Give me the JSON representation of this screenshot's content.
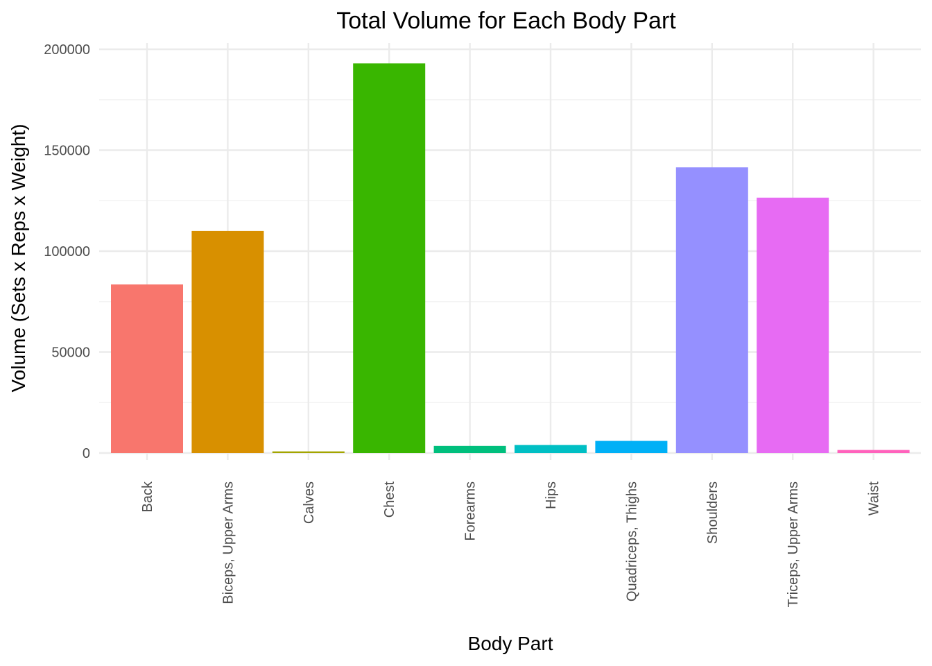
{
  "chart_data": {
    "type": "bar",
    "title": "Total Volume for Each Body Part",
    "xlabel": "Body Part",
    "ylabel": "Volume (Sets x Reps x Weight)",
    "categories": [
      "Back",
      "Biceps, Upper Arms",
      "Calves",
      "Chest",
      "Forearms",
      "Hips",
      "Quadriceps, Thighs",
      "Shoulders",
      "Triceps, Upper Arms",
      "Waist"
    ],
    "values": [
      83500,
      110000,
      800,
      193000,
      3500,
      4000,
      6000,
      141500,
      126500,
      1500
    ],
    "colors": [
      "#F8766D",
      "#D89000",
      "#A3A500",
      "#39B600",
      "#00BF7D",
      "#00BFC4",
      "#00B0F6",
      "#9590FF",
      "#E76BF3",
      "#FF62BC"
    ],
    "ylim": [
      0,
      200000
    ],
    "yticks": [
      "0",
      "50000",
      "100000",
      "150000",
      "200000"
    ],
    "grid": true,
    "legend": "none"
  }
}
